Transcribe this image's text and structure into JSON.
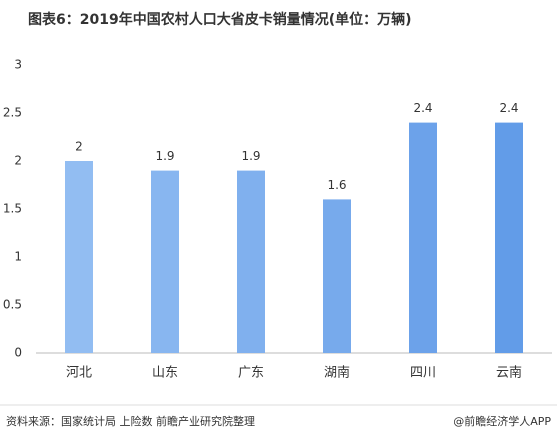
{
  "chart_data": {
    "type": "bar",
    "title": "图表6：2019年中国农村人口大省皮卡销量情况(单位：万辆)",
    "categories": [
      "河北",
      "山东",
      "广东",
      "湖南",
      "四川",
      "云南"
    ],
    "values": [
      2,
      1.9,
      1.9,
      1.6,
      2.4,
      2.4
    ],
    "colors": [
      "#92bdf2",
      "#88b6f0",
      "#80b0ee",
      "#77aaec",
      "#6ca2ea",
      "#629ce8"
    ],
    "ylim": [
      0,
      3
    ],
    "yticks": [
      0,
      0.5,
      1,
      1.5,
      2,
      2.5,
      3
    ],
    "grid": false,
    "source": "资料来源：国家统计局 上险数 前瞻产业研究院整理",
    "credit": "@前瞻经济学人APP"
  }
}
